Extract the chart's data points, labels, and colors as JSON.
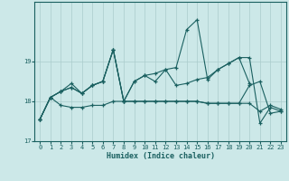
{
  "title": "",
  "xlabel": "Humidex (Indice chaleur)",
  "bg_color": "#cce8e8",
  "grid_color": "#aacccc",
  "line_color": "#1a6060",
  "x_values": [
    0,
    1,
    2,
    3,
    4,
    5,
    6,
    7,
    8,
    9,
    10,
    11,
    12,
    13,
    14,
    15,
    16,
    17,
    18,
    19,
    20,
    21,
    22,
    23
  ],
  "series": [
    [
      17.55,
      18.1,
      17.9,
      17.85,
      17.85,
      17.9,
      17.9,
      18.0,
      18.0,
      18.0,
      18.0,
      18.0,
      18.0,
      18.0,
      18.0,
      18.0,
      17.95,
      17.95,
      17.95,
      17.95,
      17.95,
      17.75,
      17.9,
      17.8
    ],
    [
      17.55,
      18.1,
      18.25,
      18.35,
      18.2,
      18.4,
      18.5,
      19.3,
      18.0,
      18.0,
      18.0,
      18.0,
      18.0,
      18.0,
      18.0,
      18.0,
      17.95,
      17.95,
      17.95,
      17.95,
      18.4,
      18.5,
      17.7,
      17.75
    ],
    [
      17.55,
      18.1,
      18.25,
      18.35,
      18.2,
      18.4,
      18.5,
      19.3,
      18.0,
      18.5,
      18.65,
      18.7,
      18.8,
      18.4,
      18.45,
      18.55,
      18.6,
      18.8,
      18.95,
      19.1,
      18.45,
      null,
      null,
      null
    ],
    [
      17.55,
      18.1,
      18.25,
      18.45,
      18.2,
      18.4,
      18.5,
      19.3,
      18.0,
      18.5,
      18.65,
      18.5,
      18.8,
      18.85,
      19.8,
      20.05,
      18.55,
      18.8,
      18.95,
      19.1,
      19.1,
      17.45,
      17.85,
      17.75
    ]
  ],
  "ylim": [
    17.0,
    20.5
  ],
  "yticks": [
    17,
    18,
    19
  ],
  "xlim": [
    -0.5,
    23.5
  ],
  "xticks": [
    0,
    1,
    2,
    3,
    4,
    5,
    6,
    7,
    8,
    9,
    10,
    11,
    12,
    13,
    14,
    15,
    16,
    17,
    18,
    19,
    20,
    21,
    22,
    23
  ]
}
